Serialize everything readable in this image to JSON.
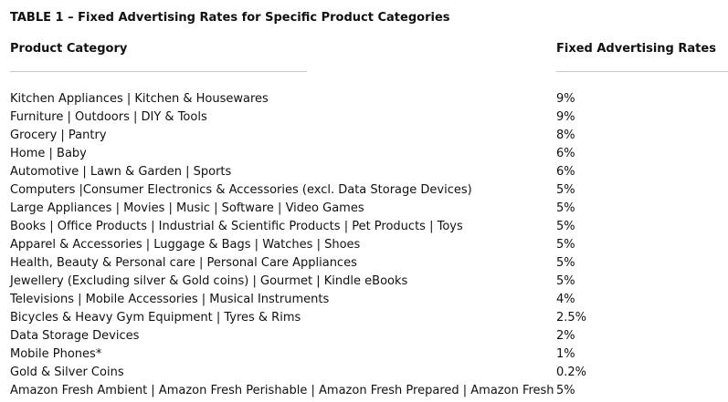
{
  "title": "TABLE 1 – Fixed Advertising Rates for Specific Product Categories",
  "table": {
    "headers": {
      "category": "Product Category",
      "rate": "Fixed Advertising Rates"
    },
    "rows": [
      {
        "category": "Kitchen Appliances | Kitchen & Housewares",
        "rate": "9%"
      },
      {
        "category": "Furniture | Outdoors | DIY & Tools",
        "rate": "9%"
      },
      {
        "category": "Grocery | Pantry",
        "rate": "8%"
      },
      {
        "category": "Home | Baby",
        "rate": "6%"
      },
      {
        "category": "Automotive | Lawn & Garden | Sports",
        "rate": "6%"
      },
      {
        "category": "Computers |Consumer Electronics & Accessories (excl. Data Storage Devices)",
        "rate": "5%"
      },
      {
        "category": "Large Appliances | Movies | Music | Software | Video Games",
        "rate": "5%"
      },
      {
        "category": "Books | Office Products | Industrial & Scientific Products | Pet Products | Toys",
        "rate": "5%"
      },
      {
        "category": "Apparel & Accessories | Luggage & Bags | Watches | Shoes",
        "rate": "5%"
      },
      {
        "category": "Health, Beauty & Personal care | Personal Care Appliances",
        "rate": "5%"
      },
      {
        "category": "Jewellery (Excluding silver & Gold coins) | Gourmet | Kindle eBooks",
        "rate": "5%"
      },
      {
        "category": "Televisions | Mobile Accessories | Musical Instruments",
        "rate": "4%"
      },
      {
        "category": "Bicycles & Heavy Gym Equipment | Tyres & Rims",
        "rate": "2.5%"
      },
      {
        "category": "Data Storage Devices",
        "rate": "2%"
      },
      {
        "category": "Mobile Phones*",
        "rate": "1%"
      },
      {
        "category": "Gold & Silver Coins",
        "rate": "0.2%"
      },
      {
        "category": "Amazon Fresh Ambient | Amazon Fresh Perishable | Amazon Fresh Prepared | Amazon Fresh",
        "rate": "5%"
      }
    ]
  }
}
